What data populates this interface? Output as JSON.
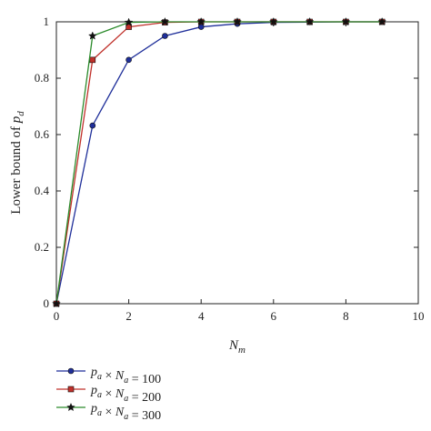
{
  "chart_data": {
    "type": "line",
    "xlabel": "N_m",
    "ylabel": "Lower bound of p_d",
    "xlim": [
      0,
      10
    ],
    "ylim": [
      0,
      1
    ],
    "xticks": [
      0,
      2,
      4,
      6,
      8,
      10
    ],
    "yticks": [
      0,
      0.2,
      0.4,
      0.6,
      0.8,
      1
    ],
    "xtick_labels": [
      "0",
      "2",
      "4",
      "6",
      "8",
      "10"
    ],
    "ytick_labels": [
      "0",
      "0.2",
      "0.4",
      "0.6",
      "0.8",
      "1"
    ],
    "grid": false,
    "legend_position": "below",
    "x": [
      0,
      1,
      2,
      3,
      4,
      5,
      6,
      7,
      8,
      9
    ],
    "series": [
      {
        "name": "p_a × N_a = 100",
        "color": "#1f2f9a",
        "marker": "circle",
        "values": [
          0,
          0.632,
          0.865,
          0.95,
          0.982,
          0.993,
          0.998,
          0.999,
          1.0,
          1.0
        ]
      },
      {
        "name": "p_a × N_a = 200",
        "color": "#c0302a",
        "marker": "square",
        "values": [
          0,
          0.865,
          0.982,
          0.998,
          1.0,
          1.0,
          1.0,
          1.0,
          1.0,
          1.0
        ]
      },
      {
        "name": "p_a × N_a = 300",
        "color": "#2a8a2a",
        "marker": "star",
        "values": [
          0,
          0.95,
          0.998,
          1.0,
          1.0,
          1.0,
          1.0,
          1.0,
          1.0,
          1.0
        ]
      }
    ]
  }
}
